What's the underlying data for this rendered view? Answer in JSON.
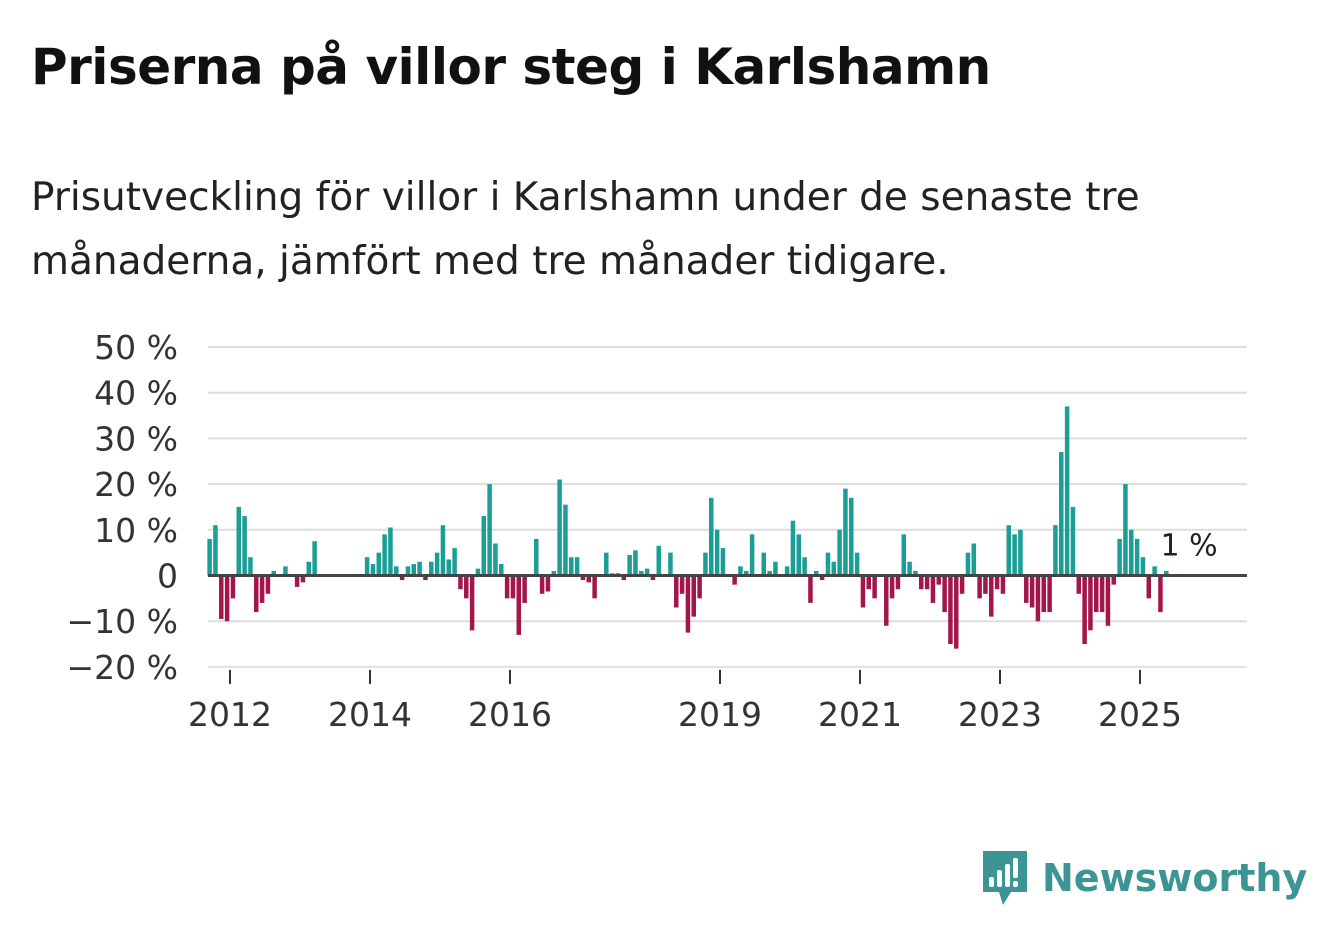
{
  "title": "Priserna på villor steg i Karlshamn",
  "subtitle_line1": "Prisutveckling för villor i Karlshamn under de senaste tre",
  "subtitle_line2": "månaderna, jämfört med tre månader tidigare.",
  "brand": "Newsworthy",
  "colors": {
    "positive": "#1a9e95",
    "negative": "#a3164b",
    "grid": "#dddddd",
    "zero": "#444444",
    "brand": "#3d9494"
  },
  "chart_data": {
    "type": "bar",
    "title": "Priserna på villor steg i Karlshamn",
    "ylabel": "",
    "xlabel": "",
    "ylim": [
      -20,
      50
    ],
    "yticks": [
      50,
      40,
      30,
      20,
      10,
      0,
      -10,
      -20
    ],
    "ytick_labels": [
      "50 %",
      "40 %",
      "30 %",
      "20 %",
      "10 %",
      "0",
      "−10 %",
      "−20 %"
    ],
    "xticks": [
      2012,
      2014,
      2016,
      2019,
      2021,
      2023,
      2025
    ],
    "xtick_labels": [
      "2012",
      "2014",
      "2016",
      "2019",
      "2021",
      "2023",
      "2025"
    ],
    "x_start": 2011.667,
    "months_per_bar": 1,
    "annotation": {
      "text": "1 %",
      "index": 169
    },
    "values": [
      8,
      11,
      -9.5,
      -10,
      -5,
      15,
      13,
      4,
      -8,
      -6,
      -4,
      1,
      0,
      2,
      0,
      -2.5,
      -1.5,
      3,
      7.5,
      0,
      0,
      0,
      0,
      0,
      0,
      0,
      0,
      4,
      2.5,
      5,
      9,
      10.5,
      2,
      -1,
      2,
      2.5,
      3,
      -1,
      3,
      5,
      11,
      3.5,
      6,
      -3,
      -5,
      -12,
      1.5,
      13,
      20,
      7,
      2.5,
      -5,
      -5,
      -13,
      -6,
      0,
      8,
      -4,
      -3.5,
      1,
      21,
      15.5,
      4,
      4,
      -1,
      -1.5,
      -5,
      0,
      5,
      0.5,
      0.5,
      -1,
      4.5,
      5.5,
      1,
      1.5,
      -1,
      6.5,
      0,
      5,
      -7,
      -4,
      -12.5,
      -9,
      -5,
      5,
      17,
      10,
      6,
      0,
      -2,
      2,
      1,
      9,
      0,
      5,
      1,
      3,
      0,
      2,
      12,
      9,
      4,
      -6,
      1,
      -1,
      5,
      3,
      10,
      19,
      17,
      5,
      -7,
      -3,
      -5,
      0,
      -11,
      -5,
      -3,
      9,
      3,
      1,
      -3,
      -3,
      -6,
      -2,
      -8,
      -15,
      -16,
      -4,
      5,
      7,
      -5,
      -4,
      -9,
      -3,
      -4,
      11,
      9,
      10,
      -6,
      -7,
      -10,
      -8,
      -8,
      11,
      27,
      37,
      15,
      -4,
      -15,
      -12,
      -8,
      -8,
      -11,
      -2,
      8,
      20,
      10,
      8,
      4,
      -5,
      2,
      -8,
      1
    ]
  }
}
